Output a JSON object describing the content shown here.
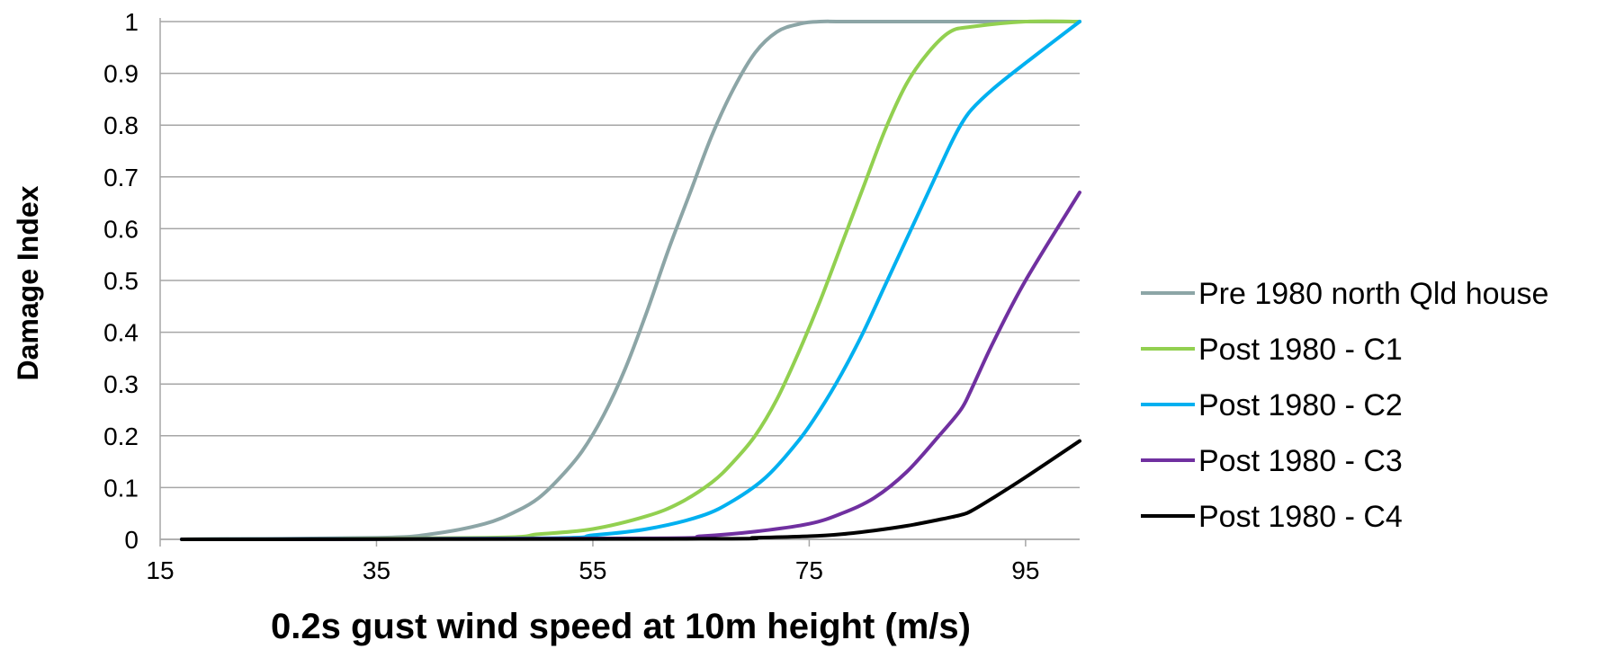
{
  "chart_data": {
    "type": "line",
    "xlabel": "0.2s gust wind speed at 10m height (m/s)",
    "ylabel": "Damage Index",
    "xlim": [
      15,
      100
    ],
    "ylim": [
      0,
      1
    ],
    "xticks": [
      15,
      35,
      55,
      75,
      95
    ],
    "yticks": [
      0,
      0.1,
      0.2,
      0.3,
      0.4,
      0.5,
      0.6,
      0.7,
      0.8,
      0.9,
      1
    ],
    "grid": "horizontal",
    "legend_position": "right",
    "series": [
      {
        "name": "Pre 1980 north Qld house",
        "color": "#8CA5A6",
        "x": [
          17,
          35,
          40,
          45,
          48,
          50,
          52,
          54,
          56,
          58,
          60,
          62,
          64,
          66,
          68,
          70,
          72,
          74,
          76,
          80,
          100
        ],
        "y": [
          0,
          0.003,
          0.01,
          0.03,
          0.055,
          0.08,
          0.12,
          0.17,
          0.24,
          0.33,
          0.44,
          0.56,
          0.67,
          0.78,
          0.87,
          0.94,
          0.98,
          0.995,
          1,
          1,
          1
        ]
      },
      {
        "name": "Post 1980 - C1",
        "color": "#92D050",
        "x": [
          17,
          45,
          50,
          55,
          60,
          63,
          66,
          68,
          70,
          72,
          74,
          76,
          78,
          80,
          82,
          84,
          86,
          88,
          90,
          95,
          100
        ],
        "y": [
          0,
          0.003,
          0.01,
          0.02,
          0.045,
          0.07,
          0.11,
          0.15,
          0.2,
          0.27,
          0.36,
          0.46,
          0.57,
          0.68,
          0.79,
          0.88,
          0.94,
          0.98,
          0.99,
          1,
          1
        ]
      },
      {
        "name": "Post 1980 - C2",
        "color": "#00B0F0",
        "x": [
          17,
          50,
          55,
          60,
          65,
          68,
          71,
          74,
          76,
          78,
          80,
          82,
          84,
          86,
          88,
          89,
          90,
          92,
          95,
          100
        ],
        "y": [
          0,
          0.002,
          0.008,
          0.02,
          0.045,
          0.075,
          0.12,
          0.19,
          0.25,
          0.32,
          0.4,
          0.49,
          0.58,
          0.67,
          0.76,
          0.8,
          0.83,
          0.87,
          0.92,
          1
        ]
      },
      {
        "name": "Post 1980 - C3",
        "color": "#7030A0",
        "x": [
          17,
          60,
          65,
          70,
          75,
          78,
          81,
          84,
          87,
          89,
          90,
          92,
          95,
          100
        ],
        "y": [
          0,
          0.002,
          0.006,
          0.015,
          0.03,
          0.05,
          0.08,
          0.13,
          0.2,
          0.25,
          0.29,
          0.38,
          0.5,
          0.67
        ]
      },
      {
        "name": "Post 1980 - C4",
        "color": "#000000",
        "x": [
          17,
          65,
          70,
          75,
          78,
          81,
          84,
          87,
          89,
          90,
          92,
          95,
          100
        ],
        "y": [
          0,
          0.001,
          0.003,
          0.006,
          0.01,
          0.017,
          0.026,
          0.038,
          0.047,
          0.055,
          0.08,
          0.12,
          0.19
        ]
      }
    ]
  }
}
